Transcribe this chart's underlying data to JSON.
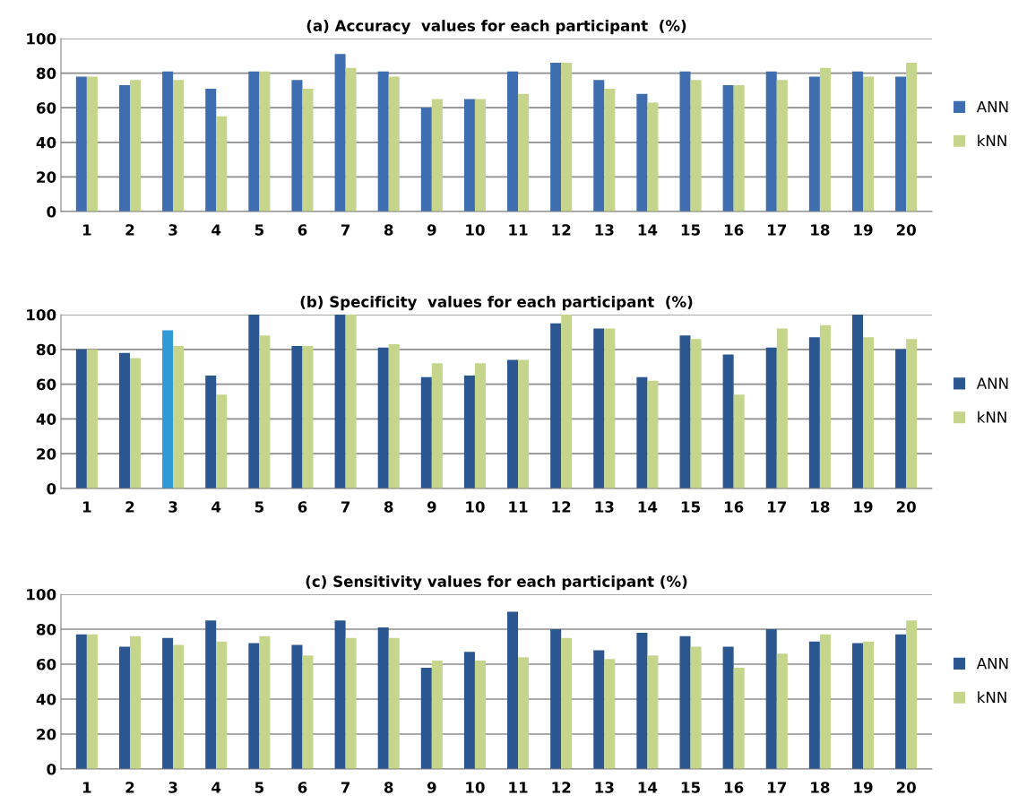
{
  "chart_data": [
    {
      "type": "bar",
      "title": "(a) Accuracy  values for each participant  (%)",
      "categories": [
        "1",
        "2",
        "3",
        "4",
        "5",
        "6",
        "7",
        "8",
        "9",
        "10",
        "11",
        "12",
        "13",
        "14",
        "15",
        "16",
        "17",
        "18",
        "19",
        "20"
      ],
      "ylim": [
        0,
        100
      ],
      "yticks": [
        0,
        20,
        40,
        60,
        80,
        100
      ],
      "grid": "y",
      "legend": "right",
      "series": [
        {
          "name": "ANN",
          "color": "#3f6eb0",
          "values": [
            78,
            73,
            81,
            71,
            81,
            76,
            91,
            81,
            60,
            65,
            81,
            86,
            76,
            68,
            81,
            73,
            81,
            78,
            81,
            78
          ]
        },
        {
          "name": "kNN",
          "color": "#c5d68c",
          "values": [
            78,
            76,
            76,
            55,
            81,
            71,
            83,
            78,
            65,
            65,
            68,
            86,
            71,
            63,
            76,
            73,
            76,
            83,
            78,
            86
          ]
        }
      ]
    },
    {
      "type": "bar",
      "title": "(b) Specificity  values for each participant  (%)",
      "categories": [
        "1",
        "2",
        "3",
        "4",
        "5",
        "6",
        "7",
        "8",
        "9",
        "10",
        "11",
        "12",
        "13",
        "14",
        "15",
        "16",
        "17",
        "18",
        "19",
        "20"
      ],
      "ylim": [
        0,
        100
      ],
      "yticks": [
        0,
        20,
        40,
        60,
        80,
        100
      ],
      "grid": "y",
      "legend": "right",
      "series": [
        {
          "name": "ANN",
          "color": "#2b5791",
          "colors": [
            "#2b5791",
            "#2b5791",
            "#2f9ad6",
            "#2b5791",
            "#2b5791",
            "#2b5791",
            "#2b5791",
            "#2b5791",
            "#2b5791",
            "#2b5791",
            "#2b5791",
            "#2b5791",
            "#2b5791",
            "#2b5791",
            "#2b5791",
            "#2b5791",
            "#2b5791",
            "#2b5791",
            "#2b5791",
            "#2b5791"
          ],
          "values": [
            80,
            78,
            91,
            65,
            100,
            82,
            100,
            81,
            64,
            65,
            74,
            95,
            92,
            64,
            88,
            77,
            81,
            87,
            100,
            80
          ]
        },
        {
          "name": "kNN",
          "color": "#c5d68c",
          "values": [
            80,
            75,
            82,
            54,
            88,
            82,
            100,
            83,
            72,
            72,
            74,
            100,
            92,
            62,
            86,
            54,
            92,
            94,
            87,
            86
          ]
        }
      ]
    },
    {
      "type": "bar",
      "title": "(c) Sensitivity values for each participant (%)",
      "categories": [
        "1",
        "2",
        "3",
        "4",
        "5",
        "6",
        "7",
        "8",
        "9",
        "10",
        "11",
        "12",
        "13",
        "14",
        "15",
        "16",
        "17",
        "18",
        "19",
        "20"
      ],
      "ylim": [
        0,
        100
      ],
      "yticks": [
        0,
        20,
        40,
        60,
        80,
        100
      ],
      "grid": "y",
      "legend": "right",
      "series": [
        {
          "name": "ANN",
          "color": "#2b5791",
          "values": [
            77,
            70,
            75,
            85,
            72,
            71,
            85,
            81,
            58,
            67,
            90,
            80,
            68,
            78,
            76,
            70,
            80,
            73,
            72,
            77
          ]
        },
        {
          "name": "kNN",
          "color": "#c5d68c",
          "values": [
            77,
            76,
            71,
            73,
            76,
            65,
            75,
            75,
            62,
            62,
            64,
            75,
            63,
            65,
            70,
            58,
            66,
            77,
            73,
            85
          ]
        }
      ]
    }
  ]
}
